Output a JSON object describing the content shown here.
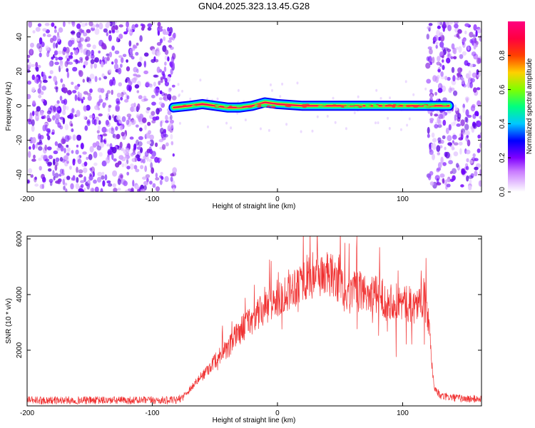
{
  "title": "GN04.2025.323.13.45.G28",
  "chart_data": [
    {
      "type": "heatmap",
      "xlabel": "Height of straight line (km)",
      "ylabel": "Frequency (Hz)",
      "xlim": [
        -200,
        163
      ],
      "ylim": [
        -50,
        49
      ],
      "xticks": [
        -200,
        -100,
        0,
        100
      ],
      "yticks": [
        -40,
        -20,
        0,
        20,
        40
      ],
      "colorbar": {
        "label": "Normalized spectral amplitude",
        "range": [
          0,
          1
        ],
        "ticks": [
          0.0,
          0.2,
          0.4,
          0.6,
          0.8
        ],
        "colors": [
          "#ffffff",
          "#c97bff",
          "#7f00ff",
          "#0000ff",
          "#00c8ff",
          "#00ff80",
          "#80ff00",
          "#ffd000",
          "#ff4000",
          "#ff0080"
        ]
      },
      "signal": {
        "x_start": -83,
        "x_end": 137,
        "frequency": 0,
        "noise_x_ranges": [
          [
            -200,
            -82
          ],
          [
            120,
            163
          ]
        ],
        "track_points": [
          [
            -83,
            -1
          ],
          [
            -70,
            0
          ],
          [
            -60,
            1
          ],
          [
            -50,
            0
          ],
          [
            -40,
            -1
          ],
          [
            -30,
            -1
          ],
          [
            -20,
            0
          ],
          [
            -10,
            2
          ],
          [
            0,
            1
          ],
          [
            20,
            0
          ],
          [
            40,
            0
          ],
          [
            60,
            0
          ],
          [
            80,
            0
          ],
          [
            100,
            0
          ],
          [
            120,
            0
          ],
          [
            137,
            0
          ]
        ]
      }
    },
    {
      "type": "line",
      "xlabel": "Height of straight line (km)",
      "ylabel": "SNR (10 * v/v)",
      "xlim": [
        -200,
        163
      ],
      "ylim": [
        0,
        6100
      ],
      "xticks": [
        -200,
        -100,
        0,
        100
      ],
      "yticks": [
        2000,
        4000,
        6000
      ],
      "color": "#f03030",
      "x": [
        -200,
        -150,
        -100,
        -80,
        -75,
        -65,
        -55,
        -45,
        -40,
        -35,
        -25,
        -15,
        -5,
        0,
        10,
        20,
        30,
        40,
        50,
        55,
        60,
        70,
        80,
        90,
        100,
        110,
        117,
        120,
        125,
        130,
        140,
        150,
        163
      ],
      "values": [
        200,
        200,
        200,
        200,
        350,
        850,
        1350,
        1900,
        1950,
        2400,
        2950,
        3300,
        3650,
        3850,
        4200,
        4550,
        4750,
        4700,
        4500,
        3700,
        4100,
        4100,
        3950,
        3800,
        3700,
        3600,
        3900,
        3300,
        700,
        350,
        300,
        250,
        250
      ]
    }
  ]
}
